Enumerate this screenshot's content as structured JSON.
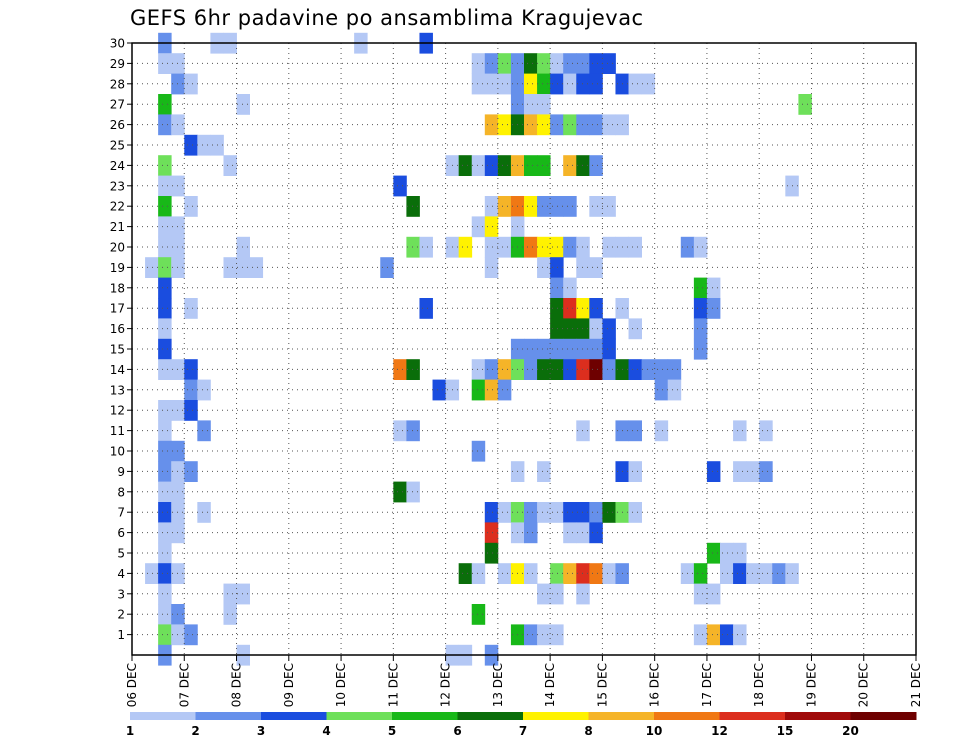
{
  "chart_data": {
    "type": "heatmap",
    "title": "GEFS 6hr padavine po ansamblima Kragujevac",
    "x_tick_labels": [
      "06 DEC",
      "07 DEC",
      "08 DEC",
      "09 DEC",
      "10 DEC",
      "11 DEC",
      "12 DEC",
      "13 DEC",
      "14 DEC",
      "15 DEC",
      "16 DEC",
      "17 DEC",
      "18 DEC",
      "19 DEC",
      "20 DEC",
      "21 DEC"
    ],
    "y_tick_labels": [
      "1",
      "2",
      "3",
      "4",
      "5",
      "6",
      "7",
      "8",
      "9",
      "10",
      "11",
      "12",
      "13",
      "14",
      "15",
      "16",
      "17",
      "18",
      "19",
      "20",
      "21",
      "22",
      "23",
      "24",
      "25",
      "26",
      "27",
      "28",
      "29",
      "30"
    ],
    "ylim": [
      0,
      30
    ],
    "grid": true,
    "x_day_start": "06 DEC",
    "steps_per_day": 4,
    "colorbar": {
      "labels": [
        "1",
        "2",
        "3",
        "4",
        "5",
        "6",
        "7",
        "8",
        "10",
        "12",
        "15",
        "20"
      ],
      "colors": [
        "#b4c8f5",
        "#6690eb",
        "#1a4ddf",
        "#6ee05a",
        "#18b818",
        "#0a6e0a",
        "#fff200",
        "#f5b428",
        "#f07814",
        "#dc2e1e",
        "#a00a0a",
        "#6e0000"
      ]
    },
    "cells": [
      [
        30,
        0.5,
        1
      ],
      [
        30,
        1.5,
        0
      ],
      [
        30,
        1.75,
        0
      ],
      [
        30,
        4.25,
        0
      ],
      [
        30,
        5.5,
        2
      ],
      [
        29,
        0.5,
        0
      ],
      [
        29,
        0.75,
        0
      ],
      [
        29,
        6.5,
        0
      ],
      [
        29,
        6.75,
        1
      ],
      [
        29,
        7.0,
        3
      ],
      [
        29,
        7.25,
        1
      ],
      [
        29,
        7.5,
        5
      ],
      [
        29,
        7.75,
        3
      ],
      [
        29,
        8.0,
        0
      ],
      [
        29,
        8.25,
        1
      ],
      [
        29,
        8.5,
        1
      ],
      [
        29,
        8.75,
        2
      ],
      [
        29,
        9.0,
        2
      ],
      [
        28,
        0.75,
        1
      ],
      [
        28,
        1.0,
        0
      ],
      [
        28,
        6.5,
        0
      ],
      [
        28,
        6.75,
        0
      ],
      [
        28,
        7.0,
        0
      ],
      [
        28,
        7.25,
        1
      ],
      [
        28,
        7.5,
        6
      ],
      [
        28,
        7.75,
        4
      ],
      [
        28,
        8.0,
        2
      ],
      [
        28,
        8.25,
        0
      ],
      [
        28,
        8.5,
        2
      ],
      [
        28,
        8.75,
        2
      ],
      [
        28,
        9.25,
        2
      ],
      [
        28,
        9.5,
        0
      ],
      [
        28,
        9.75,
        0
      ],
      [
        27,
        0.5,
        4
      ],
      [
        27,
        2.0,
        0
      ],
      [
        27,
        7.25,
        1
      ],
      [
        27,
        7.5,
        0
      ],
      [
        27,
        7.75,
        0
      ],
      [
        27,
        12.75,
        3
      ],
      [
        26,
        0.5,
        1
      ],
      [
        26,
        0.75,
        0
      ],
      [
        26,
        6.75,
        7
      ],
      [
        26,
        7.0,
        6
      ],
      [
        26,
        7.25,
        5
      ],
      [
        26,
        7.5,
        7
      ],
      [
        26,
        7.75,
        6
      ],
      [
        26,
        8.0,
        1
      ],
      [
        26,
        8.25,
        3
      ],
      [
        26,
        8.5,
        1
      ],
      [
        26,
        8.75,
        1
      ],
      [
        26,
        9.0,
        0
      ],
      [
        26,
        9.25,
        0
      ],
      [
        25,
        1.0,
        2
      ],
      [
        25,
        1.25,
        0
      ],
      [
        25,
        1.5,
        0
      ],
      [
        24,
        0.5,
        3
      ],
      [
        24,
        1.75,
        0
      ],
      [
        24,
        6.0,
        0
      ],
      [
        24,
        6.25,
        5
      ],
      [
        24,
        6.5,
        0
      ],
      [
        24,
        6.75,
        2
      ],
      [
        24,
        7.0,
        5
      ],
      [
        24,
        7.25,
        7
      ],
      [
        24,
        7.5,
        4
      ],
      [
        24,
        7.75,
        4
      ],
      [
        24,
        8.25,
        7
      ],
      [
        24,
        8.5,
        5
      ],
      [
        24,
        8.75,
        1
      ],
      [
        23,
        0.5,
        0
      ],
      [
        23,
        0.75,
        0
      ],
      [
        23,
        5.0,
        2
      ],
      [
        23,
        12.5,
        0
      ],
      [
        22,
        0.5,
        4
      ],
      [
        22,
        1.0,
        0
      ],
      [
        22,
        5.25,
        5
      ],
      [
        22,
        6.75,
        0
      ],
      [
        22,
        7.0,
        7
      ],
      [
        22,
        7.25,
        8
      ],
      [
        22,
        7.5,
        6
      ],
      [
        22,
        7.75,
        1
      ],
      [
        22,
        8.0,
        1
      ],
      [
        22,
        8.25,
        1
      ],
      [
        22,
        8.75,
        0
      ],
      [
        22,
        9.0,
        0
      ],
      [
        21,
        0.5,
        0
      ],
      [
        21,
        0.75,
        0
      ],
      [
        21,
        6.5,
        0
      ],
      [
        21,
        6.75,
        6
      ],
      [
        21,
        7.25,
        0
      ],
      [
        20,
        0.5,
        0
      ],
      [
        20,
        0.75,
        0
      ],
      [
        20,
        2.0,
        0
      ],
      [
        20,
        5.25,
        3
      ],
      [
        20,
        5.5,
        0
      ],
      [
        20,
        6.0,
        0
      ],
      [
        20,
        6.25,
        6
      ],
      [
        20,
        6.75,
        0
      ],
      [
        20,
        7.0,
        0
      ],
      [
        20,
        7.25,
        4
      ],
      [
        20,
        7.5,
        8
      ],
      [
        20,
        7.75,
        6
      ],
      [
        20,
        8.0,
        6
      ],
      [
        20,
        8.25,
        1
      ],
      [
        20,
        8.5,
        0
      ],
      [
        20,
        9.0,
        0
      ],
      [
        20,
        9.25,
        0
      ],
      [
        20,
        9.5,
        0
      ],
      [
        20,
        10.5,
        1
      ],
      [
        20,
        10.75,
        0
      ],
      [
        19,
        0.25,
        0
      ],
      [
        19,
        0.5,
        3
      ],
      [
        19,
        0.75,
        0
      ],
      [
        19,
        1.75,
        0
      ],
      [
        19,
        2.0,
        0
      ],
      [
        19,
        2.25,
        0
      ],
      [
        19,
        4.75,
        1
      ],
      [
        19,
        6.75,
        0
      ],
      [
        19,
        7.75,
        0
      ],
      [
        19,
        8.0,
        2
      ],
      [
        19,
        8.5,
        0
      ],
      [
        19,
        8.75,
        0
      ],
      [
        18,
        0.5,
        2
      ],
      [
        18,
        8.0,
        1
      ],
      [
        18,
        8.25,
        0
      ],
      [
        18,
        10.75,
        4
      ],
      [
        18,
        11.0,
        0
      ],
      [
        17,
        0.5,
        2
      ],
      [
        17,
        1.0,
        0
      ],
      [
        17,
        5.5,
        2
      ],
      [
        17,
        8.0,
        5
      ],
      [
        17,
        8.25,
        9
      ],
      [
        17,
        8.5,
        6
      ],
      [
        17,
        8.75,
        2
      ],
      [
        17,
        9.25,
        0
      ],
      [
        17,
        10.75,
        2
      ],
      [
        17,
        11.0,
        1
      ],
      [
        16,
        0.5,
        0
      ],
      [
        16,
        8.0,
        5
      ],
      [
        16,
        8.25,
        5
      ],
      [
        16,
        8.5,
        5
      ],
      [
        16,
        8.75,
        0
      ],
      [
        16,
        9.0,
        2
      ],
      [
        16,
        9.5,
        0
      ],
      [
        16,
        10.75,
        1
      ],
      [
        15,
        0.5,
        2
      ],
      [
        15,
        7.25,
        1
      ],
      [
        15,
        7.5,
        1
      ],
      [
        15,
        7.75,
        1
      ],
      [
        15,
        8.0,
        1
      ],
      [
        15,
        8.25,
        1
      ],
      [
        15,
        8.5,
        1
      ],
      [
        15,
        8.75,
        1
      ],
      [
        15,
        9.0,
        2
      ],
      [
        15,
        10.75,
        1
      ],
      [
        14,
        0.5,
        0
      ],
      [
        14,
        0.75,
        0
      ],
      [
        14,
        1.0,
        2
      ],
      [
        14,
        5.0,
        8
      ],
      [
        14,
        5.25,
        5
      ],
      [
        14,
        6.5,
        0
      ],
      [
        14,
        6.75,
        1
      ],
      [
        14,
        7.0,
        7
      ],
      [
        14,
        7.25,
        3
      ],
      [
        14,
        7.5,
        1
      ],
      [
        14,
        7.75,
        5
      ],
      [
        14,
        8.0,
        5
      ],
      [
        14,
        8.25,
        2
      ],
      [
        14,
        8.5,
        9
      ],
      [
        14,
        8.75,
        11
      ],
      [
        14,
        9.0,
        1
      ],
      [
        14,
        9.25,
        5
      ],
      [
        14,
        9.5,
        2
      ],
      [
        14,
        9.75,
        1
      ],
      [
        14,
        10.0,
        1
      ],
      [
        14,
        10.25,
        1
      ],
      [
        13,
        1.0,
        1
      ],
      [
        13,
        1.25,
        0
      ],
      [
        13,
        5.75,
        2
      ],
      [
        13,
        6.0,
        0
      ],
      [
        13,
        6.5,
        4
      ],
      [
        13,
        6.75,
        7
      ],
      [
        13,
        7.0,
        1
      ],
      [
        13,
        10.0,
        1
      ],
      [
        13,
        10.25,
        0
      ],
      [
        12,
        0.5,
        0
      ],
      [
        12,
        0.75,
        0
      ],
      [
        12,
        1.0,
        2
      ],
      [
        11,
        0.5,
        0
      ],
      [
        11,
        1.25,
        1
      ],
      [
        11,
        5.0,
        0
      ],
      [
        11,
        5.25,
        1
      ],
      [
        11,
        8.5,
        0
      ],
      [
        11,
        9.25,
        1
      ],
      [
        11,
        9.5,
        1
      ],
      [
        11,
        10.0,
        0
      ],
      [
        11,
        11.5,
        0
      ],
      [
        11,
        12.0,
        0
      ],
      [
        10,
        0.5,
        1
      ],
      [
        10,
        0.75,
        1
      ],
      [
        10,
        6.5,
        1
      ],
      [
        9,
        0.5,
        1
      ],
      [
        9,
        0.75,
        0
      ],
      [
        9,
        1.0,
        1
      ],
      [
        9,
        7.25,
        0
      ],
      [
        9,
        7.75,
        0
      ],
      [
        9,
        9.25,
        2
      ],
      [
        9,
        9.5,
        0
      ],
      [
        9,
        11.0,
        2
      ],
      [
        9,
        11.5,
        0
      ],
      [
        9,
        11.75,
        0
      ],
      [
        9,
        12.0,
        1
      ],
      [
        8,
        0.5,
        0
      ],
      [
        8,
        0.75,
        0
      ],
      [
        8,
        5.0,
        5
      ],
      [
        8,
        5.25,
        0
      ],
      [
        7,
        0.5,
        2
      ],
      [
        7,
        0.75,
        0
      ],
      [
        7,
        1.25,
        0
      ],
      [
        7,
        6.75,
        2
      ],
      [
        7,
        7.0,
        0
      ],
      [
        7,
        7.25,
        3
      ],
      [
        7,
        7.5,
        1
      ],
      [
        7,
        7.75,
        0
      ],
      [
        7,
        8.0,
        0
      ],
      [
        7,
        8.25,
        2
      ],
      [
        7,
        8.5,
        2
      ],
      [
        7,
        8.75,
        1
      ],
      [
        7,
        9.0,
        5
      ],
      [
        7,
        9.25,
        3
      ],
      [
        7,
        9.5,
        0
      ],
      [
        6,
        0.5,
        0
      ],
      [
        6,
        0.75,
        0
      ],
      [
        6,
        6.75,
        9
      ],
      [
        6,
        7.25,
        0
      ],
      [
        6,
        7.5,
        1
      ],
      [
        6,
        8.25,
        0
      ],
      [
        6,
        8.5,
        0
      ],
      [
        6,
        8.75,
        2
      ],
      [
        5,
        0.5,
        0
      ],
      [
        5,
        6.75,
        5
      ],
      [
        5,
        11.0,
        4
      ],
      [
        5,
        11.25,
        0
      ],
      [
        5,
        11.5,
        0
      ],
      [
        4,
        0.25,
        0
      ],
      [
        4,
        0.5,
        2
      ],
      [
        4,
        0.75,
        0
      ],
      [
        4,
        6.25,
        5
      ],
      [
        4,
        6.5,
        0
      ],
      [
        4,
        7.0,
        0
      ],
      [
        4,
        7.25,
        6
      ],
      [
        4,
        7.5,
        0
      ],
      [
        4,
        8.0,
        3
      ],
      [
        4,
        8.25,
        7
      ],
      [
        4,
        8.5,
        9
      ],
      [
        4,
        8.75,
        8
      ],
      [
        4,
        9.0,
        0
      ],
      [
        4,
        9.25,
        1
      ],
      [
        4,
        10.5,
        0
      ],
      [
        4,
        10.75,
        4
      ],
      [
        4,
        11.25,
        0
      ],
      [
        4,
        11.5,
        2
      ],
      [
        4,
        11.75,
        0
      ],
      [
        4,
        12.0,
        0
      ],
      [
        4,
        12.25,
        1
      ],
      [
        4,
        12.5,
        0
      ],
      [
        3,
        0.5,
        0
      ],
      [
        3,
        1.75,
        0
      ],
      [
        3,
        2.0,
        0
      ],
      [
        3,
        7.75,
        0
      ],
      [
        3,
        8.0,
        0
      ],
      [
        3,
        8.5,
        0
      ],
      [
        3,
        10.75,
        0
      ],
      [
        3,
        11.0,
        0
      ],
      [
        2,
        0.5,
        0
      ],
      [
        2,
        0.75,
        1
      ],
      [
        2,
        1.75,
        0
      ],
      [
        2,
        6.5,
        4
      ],
      [
        1,
        0.5,
        3
      ],
      [
        1,
        0.75,
        0
      ],
      [
        1,
        1.0,
        1
      ],
      [
        1,
        7.25,
        4
      ],
      [
        1,
        7.5,
        1
      ],
      [
        1,
        7.75,
        0
      ],
      [
        1,
        8.0,
        0
      ],
      [
        1,
        10.75,
        0
      ],
      [
        1,
        11.0,
        7
      ],
      [
        1,
        11.25,
        2
      ],
      [
        1,
        11.5,
        0
      ],
      [
        0,
        0.5,
        1
      ],
      [
        0,
        2.0,
        0
      ],
      [
        0,
        6.0,
        0
      ],
      [
        0,
        6.25,
        0
      ],
      [
        0,
        6.75,
        1
      ]
    ]
  }
}
